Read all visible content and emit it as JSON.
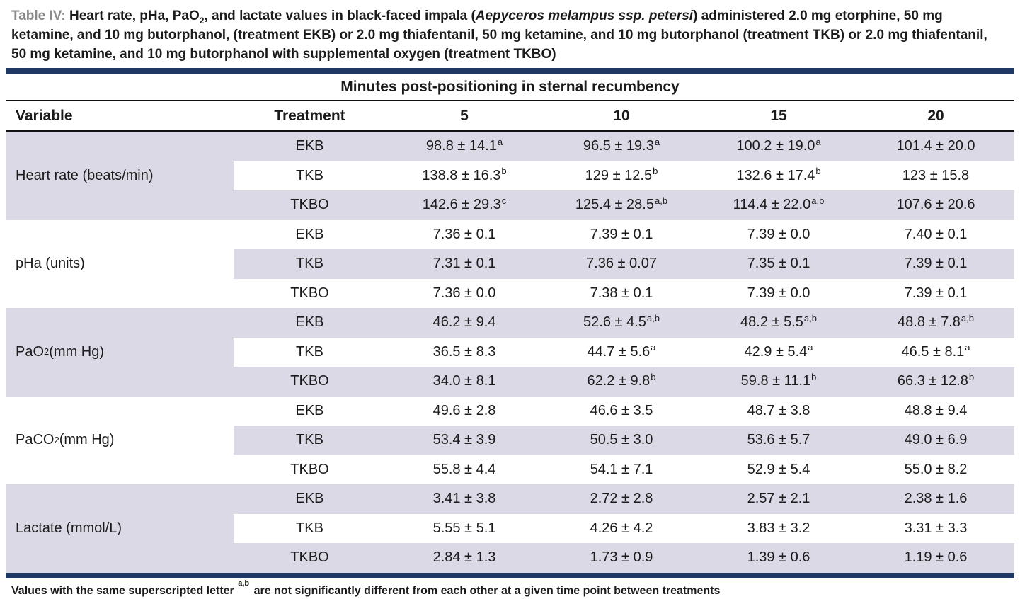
{
  "colors": {
    "navy": "#1f3864",
    "row_shade": "#dbd9e6",
    "caption_label_gray": "#8a8a8a"
  },
  "caption": {
    "label": "Table IV:",
    "segments": [
      {
        "t": " Heart rate, pHa, PaO"
      },
      {
        "t": "2",
        "sub": true
      },
      {
        "t": ", and lactate values in black-faced impala ("
      },
      {
        "t": "Aepyceros melampus ssp. petersi",
        "i": true
      },
      {
        "t": ") administered 2.0 mg etorphine, 50 mg ketamine, and 10 mg butorphanol, (treatment EKB) or 2.0 mg thiafentanil, 50 mg ketamine, and 10 mg butorphanol (treatment TKB) or 2.0 mg thiafentanil, 50 mg ketamine, and 10 mg butorphanol with supplemental oxygen (treatment TKBO)"
      }
    ]
  },
  "table": {
    "spanner": "Minutes post-positioning in sternal recumbency",
    "columns": [
      "Variable",
      "Treatment",
      "5",
      "10",
      "15",
      "20"
    ],
    "groups": [
      {
        "variable": [
          {
            "t": "Heart rate (beats/min)"
          }
        ],
        "rows": [
          {
            "treatment": "EKB",
            "cells": [
              {
                "v": "98.8 ± 14.1",
                "s": "a"
              },
              {
                "v": "96.5 ± 19.3",
                "s": "a"
              },
              {
                "v": "100.2 ± 19.0",
                "s": "a"
              },
              {
                "v": "101.4 ± 20.0"
              }
            ]
          },
          {
            "treatment": "TKB",
            "cells": [
              {
                "v": "138.8 ± 16.3",
                "s": "b"
              },
              {
                "v": "129 ± 12.5",
                "s": "b"
              },
              {
                "v": "132.6 ± 17.4",
                "s": "b"
              },
              {
                "v": "123 ± 15.8"
              }
            ]
          },
          {
            "treatment": "TKBO",
            "cells": [
              {
                "v": "142.6 ± 29.3",
                "s": "c"
              },
              {
                "v": "125.4 ± 28.5",
                "s": "a,b"
              },
              {
                "v": "114.4 ± 22.0",
                "s": "a,b"
              },
              {
                "v": "107.6 ± 20.6"
              }
            ]
          }
        ]
      },
      {
        "variable": [
          {
            "t": "pHa (units)"
          }
        ],
        "rows": [
          {
            "treatment": "EKB",
            "cells": [
              {
                "v": "7.36 ± 0.1"
              },
              {
                "v": "7.39 ± 0.1"
              },
              {
                "v": "7.39 ± 0.0"
              },
              {
                "v": "7.40 ± 0.1"
              }
            ]
          },
          {
            "treatment": "TKB",
            "cells": [
              {
                "v": "7.31 ± 0.1"
              },
              {
                "v": "7.36 ± 0.07"
              },
              {
                "v": "7.35 ± 0.1"
              },
              {
                "v": "7.39 ± 0.1"
              }
            ]
          },
          {
            "treatment": "TKBO",
            "cells": [
              {
                "v": "7.36 ± 0.0"
              },
              {
                "v": "7.38 ± 0.1"
              },
              {
                "v": "7.39 ± 0.0"
              },
              {
                "v": "7.39 ± 0.1"
              }
            ]
          }
        ]
      },
      {
        "variable": [
          {
            "t": "PaO"
          },
          {
            "t": "2",
            "sub": true
          },
          {
            "t": " (mm Hg)"
          }
        ],
        "rows": [
          {
            "treatment": "EKB",
            "cells": [
              {
                "v": "46.2 ± 9.4"
              },
              {
                "v": "52.6 ± 4.5",
                "s": "a,b"
              },
              {
                "v": "48.2 ± 5.5",
                "s": "a,b"
              },
              {
                "v": "48.8 ± 7.8",
                "s": "a,b"
              }
            ]
          },
          {
            "treatment": "TKB",
            "cells": [
              {
                "v": "36.5 ± 8.3"
              },
              {
                "v": "44.7 ± 5.6",
                "s": "a"
              },
              {
                "v": "42.9 ± 5.4",
                "s": "a"
              },
              {
                "v": "46.5 ± 8.1",
                "s": "a"
              }
            ]
          },
          {
            "treatment": "TKBO",
            "cells": [
              {
                "v": "34.0 ± 8.1"
              },
              {
                "v": "62.2 ± 9.8",
                "s": "b"
              },
              {
                "v": "59.8 ± 11.1",
                "s": "b"
              },
              {
                "v": "66.3 ± 12.8",
                "s": "b"
              }
            ]
          }
        ]
      },
      {
        "variable": [
          {
            "t": "PaCO"
          },
          {
            "t": "2",
            "sub": true
          },
          {
            "t": " (mm Hg)"
          }
        ],
        "rows": [
          {
            "treatment": "EKB",
            "cells": [
              {
                "v": "49.6 ± 2.8"
              },
              {
                "v": "46.6 ± 3.5"
              },
              {
                "v": "48.7 ± 3.8"
              },
              {
                "v": "48.8 ± 9.4"
              }
            ]
          },
          {
            "treatment": "TKB",
            "cells": [
              {
                "v": "53.4 ± 3.9"
              },
              {
                "v": "50.5 ± 3.0"
              },
              {
                "v": "53.6 ± 5.7"
              },
              {
                "v": "49.0 ± 6.9"
              }
            ]
          },
          {
            "treatment": "TKBO",
            "cells": [
              {
                "v": "55.8 ± 4.4"
              },
              {
                "v": "54.1 ± 7.1"
              },
              {
                "v": "52.9 ± 5.4"
              },
              {
                "v": "55.0 ± 8.2"
              }
            ]
          }
        ]
      },
      {
        "variable": [
          {
            "t": "Lactate (mmol/L)"
          }
        ],
        "rows": [
          {
            "treatment": "EKB",
            "cells": [
              {
                "v": "3.41 ± 3.8"
              },
              {
                "v": "2.72 ± 2.8"
              },
              {
                "v": "2.57 ± 2.1"
              },
              {
                "v": "2.38 ± 1.6"
              }
            ]
          },
          {
            "treatment": "TKB",
            "cells": [
              {
                "v": "5.55 ± 5.1"
              },
              {
                "v": "4.26 ± 4.2"
              },
              {
                "v": "3.83 ± 3.2"
              },
              {
                "v": "3.31 ± 3.3"
              }
            ]
          },
          {
            "treatment": "TKBO",
            "cells": [
              {
                "v": "2.84 ± 1.3"
              },
              {
                "v": "1.73 ± 0.9"
              },
              {
                "v": "1.39 ± 0.6"
              },
              {
                "v": "1.19 ± 0.6"
              }
            ]
          }
        ]
      }
    ]
  },
  "footnote": {
    "segments": [
      {
        "t": "Values with the same superscripted letter "
      },
      {
        "t": "a,b",
        "sup": true
      },
      {
        "t": " are not significantly different from each other at a given time point between treatments"
      }
    ]
  }
}
